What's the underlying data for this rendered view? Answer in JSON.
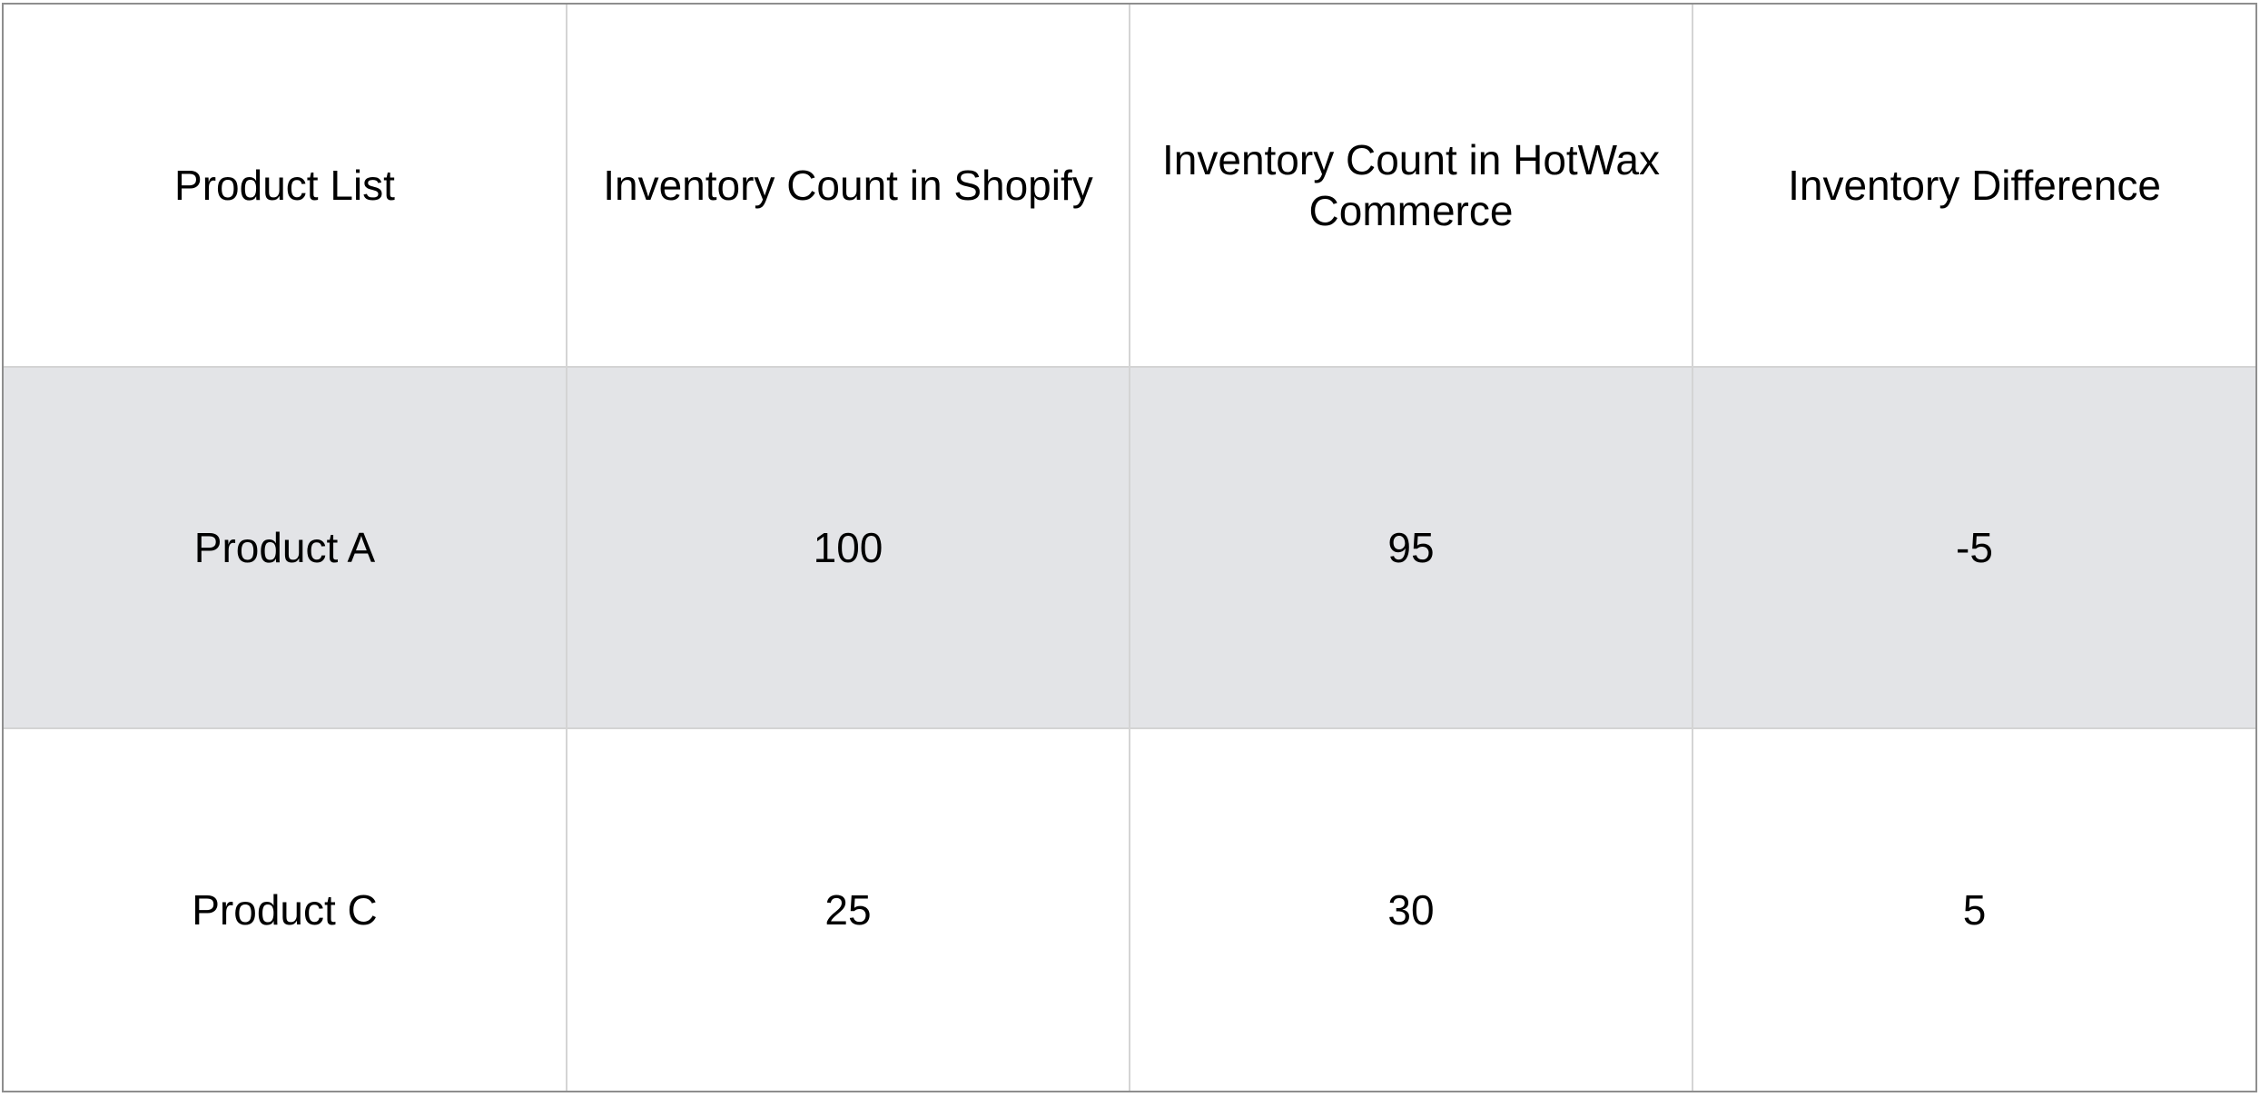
{
  "table": {
    "headers": [
      "Product List",
      "Inventory Count in Shopify",
      "Inventory Count in HotWax Commerce",
      "Inventory Difference"
    ],
    "rows": [
      [
        "Product A",
        "100",
        "95",
        "-5"
      ],
      [
        "Product C",
        "25",
        "30",
        "5"
      ]
    ],
    "colors": {
      "outer_border": "#8e8e8e",
      "inner_grid": "#d4d4d4",
      "shaded_row": "#e3e4e7",
      "text": "#000000"
    }
  }
}
